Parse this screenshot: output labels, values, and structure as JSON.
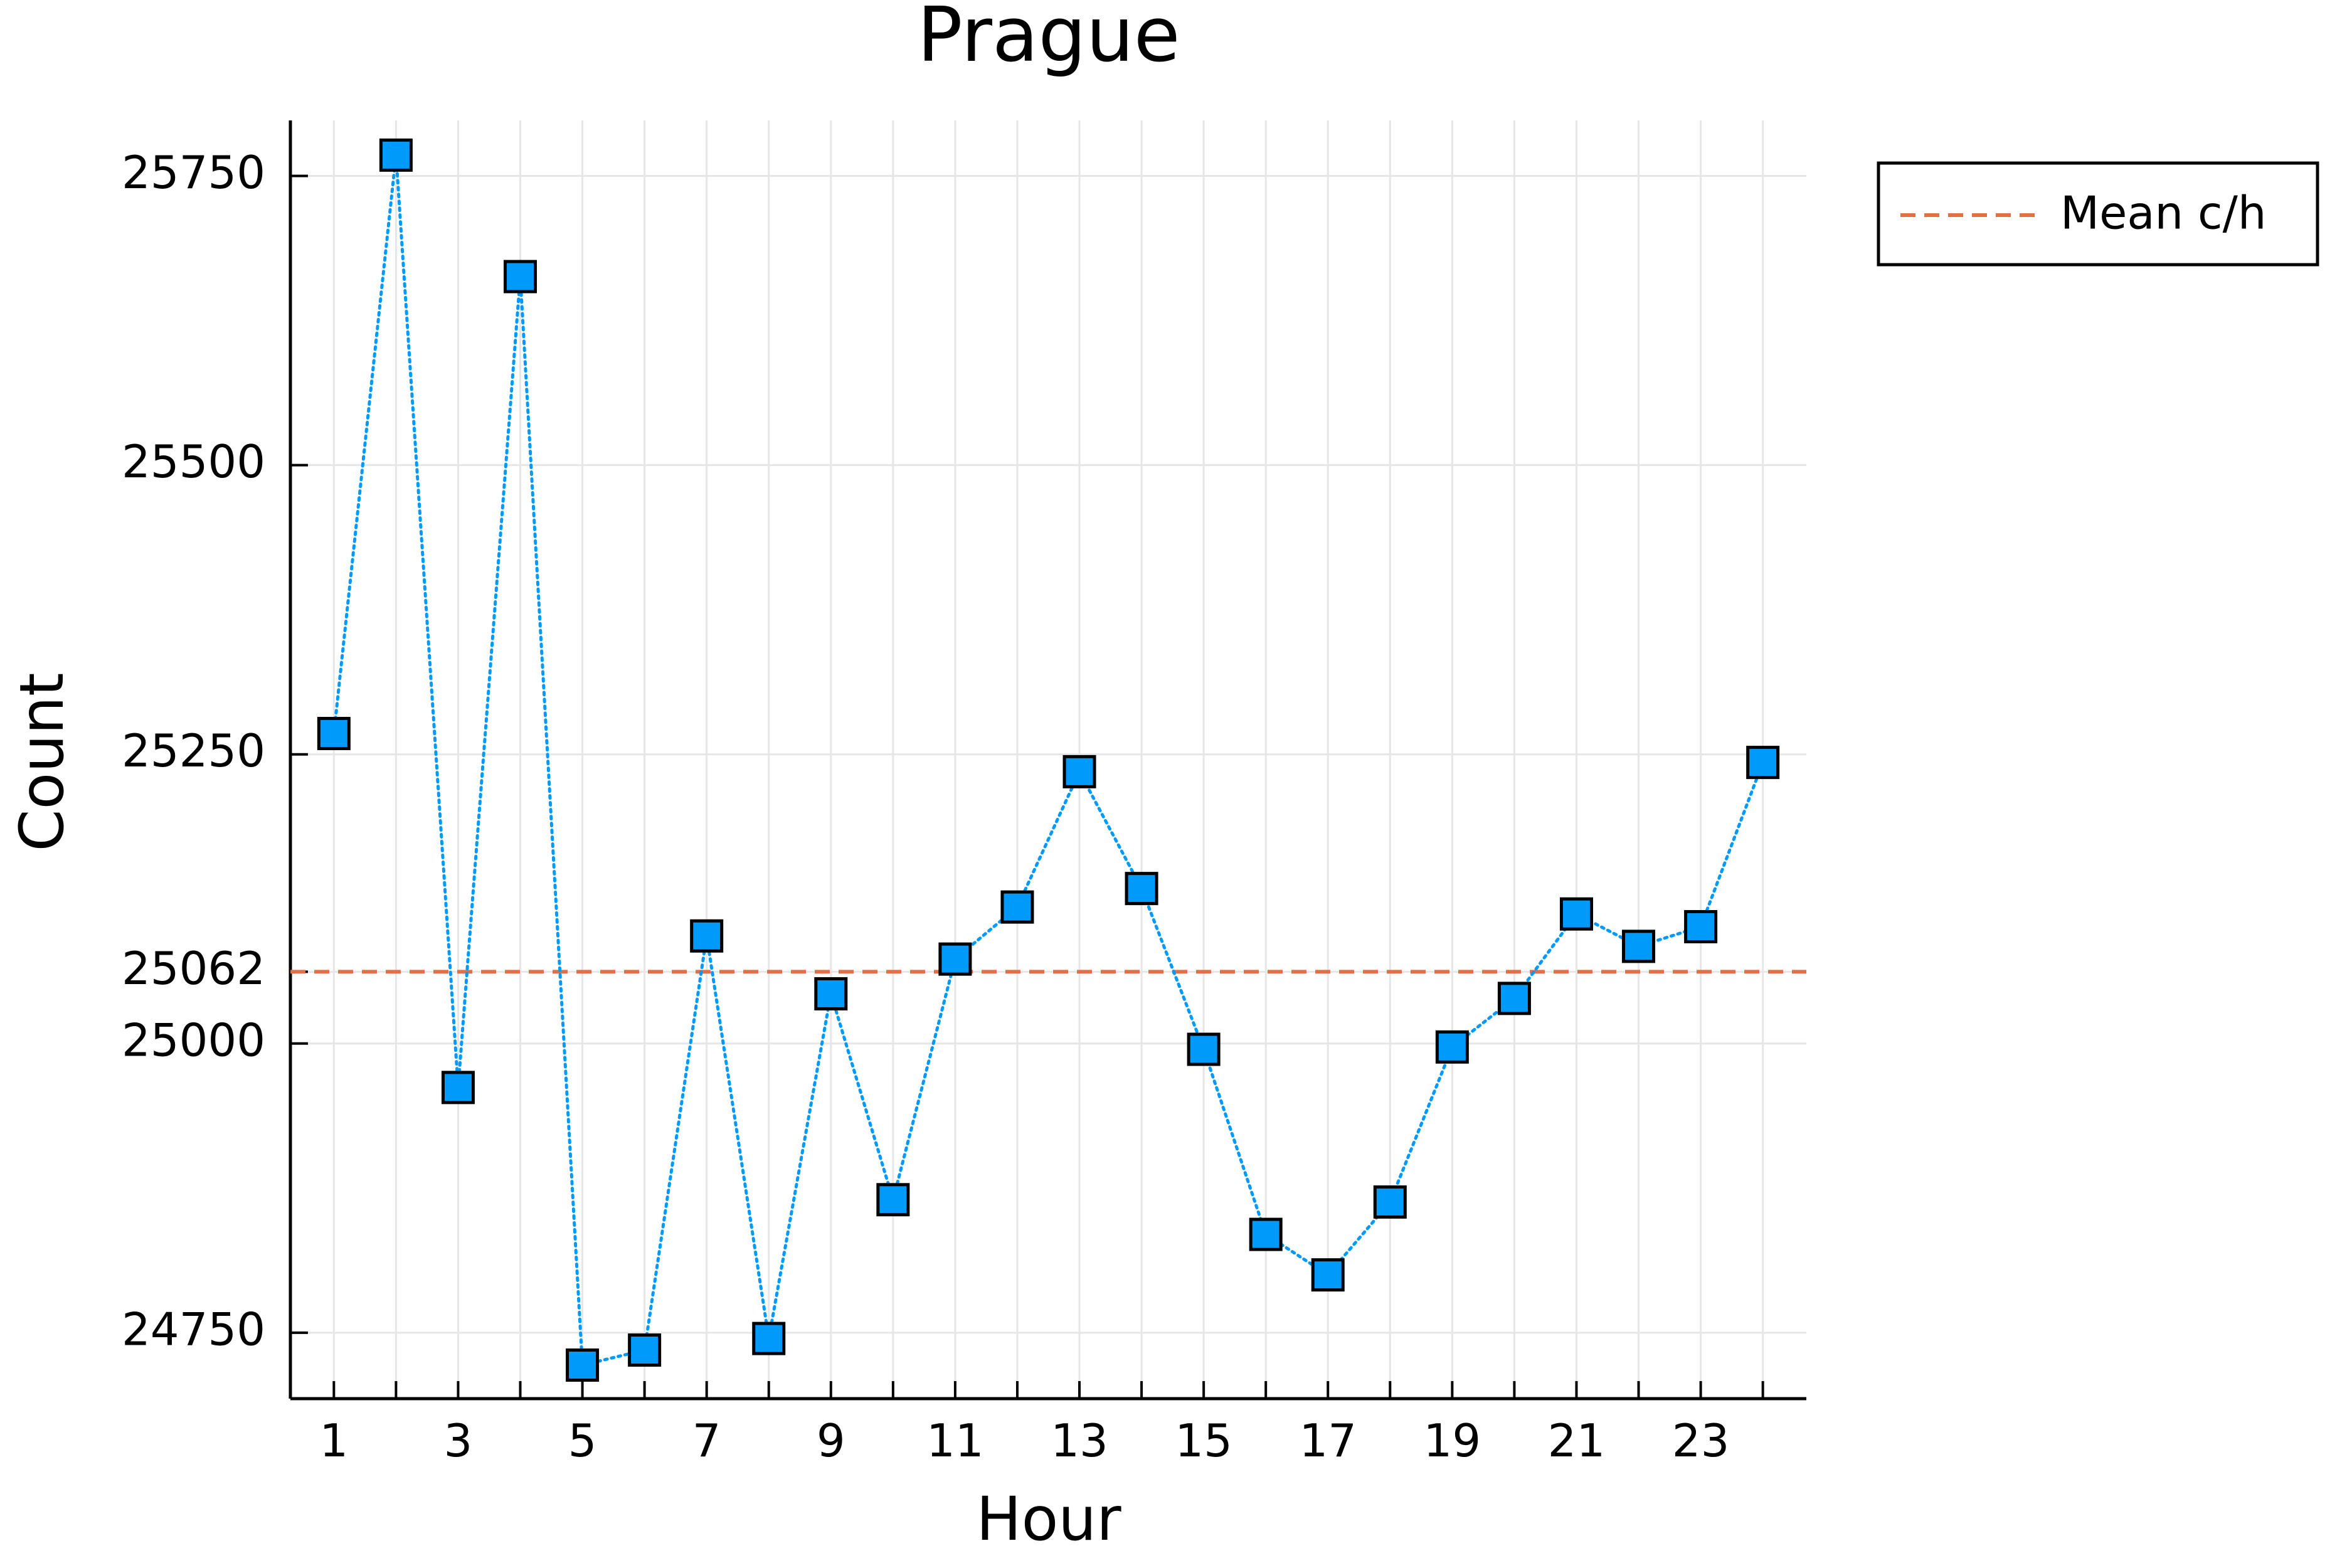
{
  "chart_data": {
    "type": "line",
    "title": "Prague",
    "xlabel": "Hour",
    "ylabel": "Count",
    "xlim": [
      0.3,
      24.7
    ],
    "ylim": [
      24693,
      25798
    ],
    "x_ticks": [
      1,
      3,
      5,
      7,
      9,
      11,
      13,
      15,
      17,
      19,
      21,
      23
    ],
    "y_ticks": [
      24750,
      25000,
      25062,
      25250,
      25500,
      25750
    ],
    "grid": true,
    "legend": {
      "position": "outer-top-right",
      "entries": [
        "Mean c/h"
      ]
    },
    "series": [
      {
        "marker": "square",
        "line_style": "dotted",
        "color": "#009AFA",
        "x": [
          1,
          2,
          3,
          4,
          5,
          6,
          7,
          8,
          9,
          10,
          11,
          12,
          13,
          14,
          15,
          16,
          17,
          18,
          19,
          20,
          21,
          22,
          23,
          24
        ],
        "y": [
          25268,
          25768,
          24962,
          25663,
          24722,
          24735,
          25093,
          24745,
          25043,
          24865,
          25073,
          25118,
          25235,
          25134,
          24995,
          24835,
          24800,
          24863,
          24997,
          25039,
          25112,
          25084,
          25101,
          25243
        ]
      }
    ],
    "reference_lines": [
      {
        "name": "Mean c/h",
        "y": 25062,
        "style": "dashed",
        "color": "#E26F46"
      }
    ]
  }
}
